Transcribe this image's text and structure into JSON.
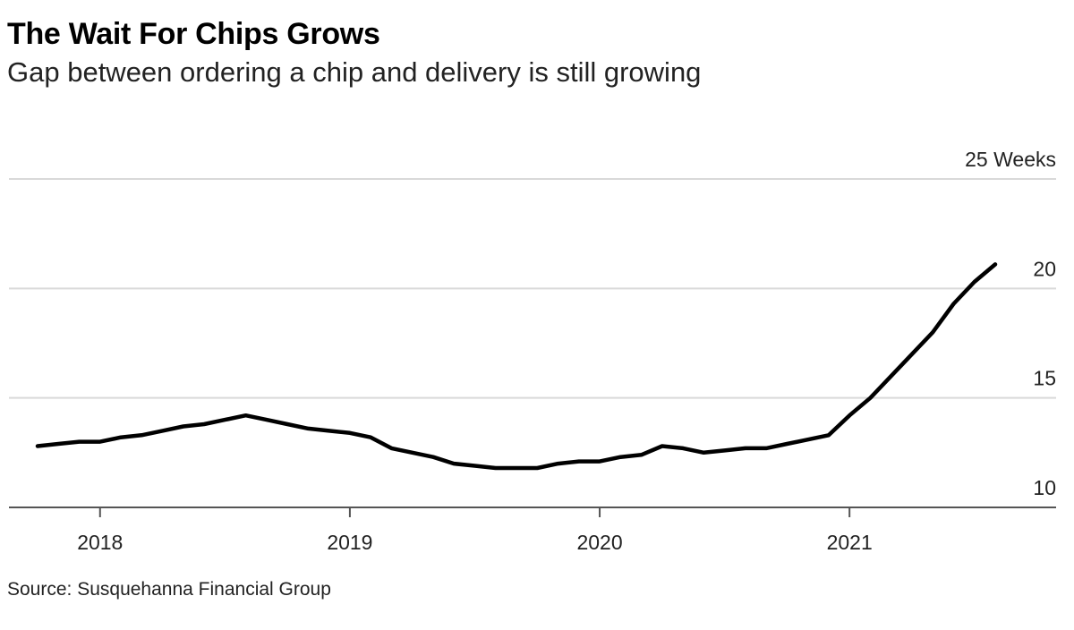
{
  "header": {
    "title": "The Wait For Chips Grows",
    "subtitle": "Gap between ordering a chip and delivery is still growing"
  },
  "footer": {
    "source": "Source: Susquehanna Financial Group"
  },
  "chart_data": {
    "type": "line",
    "title": "The Wait For Chips Grows",
    "subtitle": "Gap between ordering a chip and delivery is still growing",
    "xlabel": "",
    "ylabel": "",
    "y_unit_label": "Weeks",
    "ylim": [
      10,
      25
    ],
    "yticks": [
      10,
      15,
      20,
      25
    ],
    "ytick_labels": [
      "10",
      "15",
      "20",
      "25 Weeks"
    ],
    "xlim": [
      "2017-09-23",
      "2021-10-01"
    ],
    "xticks": [
      "2018-01-01",
      "2019-01-01",
      "2020-01-01",
      "2021-01-01"
    ],
    "xtick_labels": [
      "2018",
      "2019",
      "2020",
      "2021"
    ],
    "grid": true,
    "legend": "none",
    "line_color": "#000000",
    "series": [
      {
        "x": [
          "2017-10",
          "2017-11",
          "2017-12",
          "2018-01",
          "2018-02",
          "2018-03",
          "2018-04",
          "2018-05",
          "2018-06",
          "2018-07",
          "2018-08",
          "2018-09",
          "2018-10",
          "2018-11",
          "2018-12",
          "2019-01",
          "2019-02",
          "2019-03",
          "2019-04",
          "2019-05",
          "2019-06",
          "2019-07",
          "2019-08",
          "2019-09",
          "2019-10",
          "2019-11",
          "2019-12",
          "2020-01",
          "2020-02",
          "2020-03",
          "2020-04",
          "2020-05",
          "2020-06",
          "2020-07",
          "2020-08",
          "2020-09",
          "2020-10",
          "2020-11",
          "2020-12",
          "2021-01",
          "2021-02",
          "2021-03",
          "2021-04",
          "2021-05",
          "2021-06",
          "2021-07",
          "2021-08"
        ],
        "values": [
          12.8,
          12.9,
          13.0,
          13.0,
          13.2,
          13.3,
          13.5,
          13.7,
          13.8,
          14.0,
          14.2,
          14.0,
          13.8,
          13.6,
          13.5,
          13.4,
          13.2,
          12.7,
          12.5,
          12.3,
          12.0,
          11.9,
          11.8,
          11.8,
          11.8,
          12.0,
          12.1,
          12.1,
          12.3,
          12.4,
          12.8,
          12.7,
          12.5,
          12.6,
          12.7,
          12.7,
          12.9,
          13.1,
          13.3,
          14.2,
          15.0,
          16.0,
          17.0,
          18.0,
          19.3,
          20.3,
          21.1
        ]
      }
    ]
  }
}
